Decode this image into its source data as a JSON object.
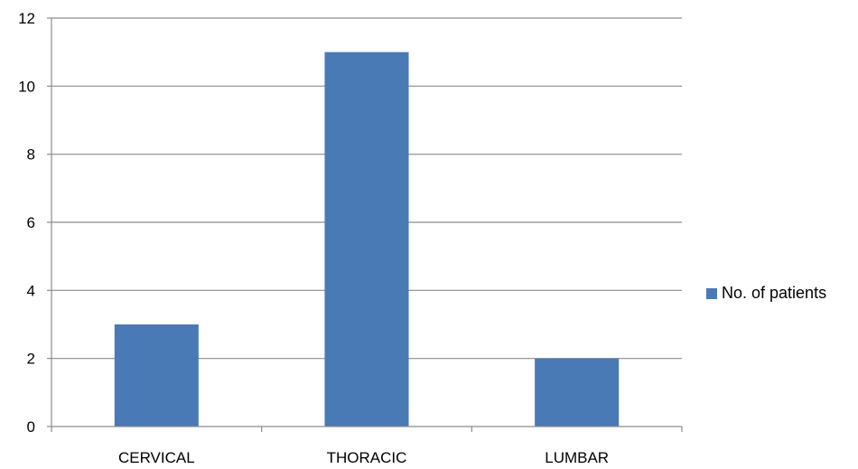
{
  "chart_data": {
    "type": "bar",
    "categories": [
      "CERVICAL",
      "THORACIC",
      "LUMBAR"
    ],
    "series": [
      {
        "name": "No. of patients",
        "values": [
          3,
          11,
          2
        ],
        "color": "#4a7ab5"
      }
    ],
    "ylim": [
      0,
      12
    ],
    "yticks": [
      0,
      2,
      4,
      6,
      8,
      10,
      12
    ],
    "grid": true,
    "legend_position": "right"
  }
}
